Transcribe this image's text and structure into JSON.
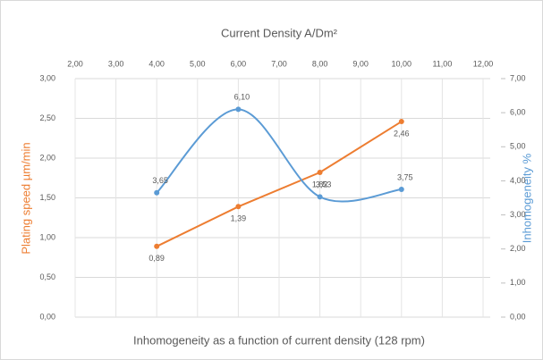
{
  "chart_data": {
    "type": "line",
    "title": "Current Density A/Dm²",
    "subtitle": "Inhomogeneity as a function of current density (128 rpm)",
    "x_label": "Current Density A/Dm²",
    "y_label": "Plating speed µm/min",
    "y2_label": "Inhomogeneity %",
    "x": [
      4,
      6,
      8,
      10
    ],
    "xlim": [
      2,
      12
    ],
    "xticks": [
      {
        "value": 2,
        "label": "2,00"
      },
      {
        "value": 3,
        "label": "3,00"
      },
      {
        "value": 4,
        "label": "4,00"
      },
      {
        "value": 5,
        "label": "5,00"
      },
      {
        "value": 6,
        "label": "6,00"
      },
      {
        "value": 7,
        "label": "7,00"
      },
      {
        "value": 8,
        "label": "8,00"
      },
      {
        "value": 9,
        "label": "9,00"
      },
      {
        "value": 10,
        "label": "10,00"
      },
      {
        "value": 11,
        "label": "11,00"
      },
      {
        "value": 12,
        "label": "12,00"
      }
    ],
    "ylim": [
      0,
      3
    ],
    "yticks": [
      {
        "value": 0,
        "label": "0,00"
      },
      {
        "value": 0.5,
        "label": "0,50"
      },
      {
        "value": 1,
        "label": "1,00"
      },
      {
        "value": 1.5,
        "label": "1,50"
      },
      {
        "value": 2,
        "label": "2,00"
      },
      {
        "value": 2.5,
        "label": "2,50"
      },
      {
        "value": 3,
        "label": "3,00"
      }
    ],
    "y2lim": [
      0,
      7
    ],
    "y2ticks": [
      {
        "value": 0,
        "label": "0,00"
      },
      {
        "value": 1,
        "label": "1,00"
      },
      {
        "value": 2,
        "label": "2,00"
      },
      {
        "value": 3,
        "label": "3,00"
      },
      {
        "value": 4,
        "label": "4,00"
      },
      {
        "value": 5,
        "label": "5,00"
      },
      {
        "value": 6,
        "label": "6,00"
      },
      {
        "value": 7,
        "label": "7,00"
      }
    ],
    "grid": true,
    "series": [
      {
        "name": "Plating speed",
        "color": "#ed7d31",
        "values": [
          0.89,
          1.39,
          1.82,
          2.46
        ],
        "value_labels": [
          "0,89",
          "1,39",
          "1,82",
          "2,46"
        ],
        "smooth": false
      },
      {
        "name": "Inhomogeneity",
        "color": "#5b9bd5",
        "axis": "y2",
        "values": [
          3.65,
          6.1,
          3.53,
          3.75
        ],
        "value_labels": [
          "3,65",
          "6,10",
          "3,53",
          "3,75"
        ],
        "smooth": true
      }
    ]
  }
}
